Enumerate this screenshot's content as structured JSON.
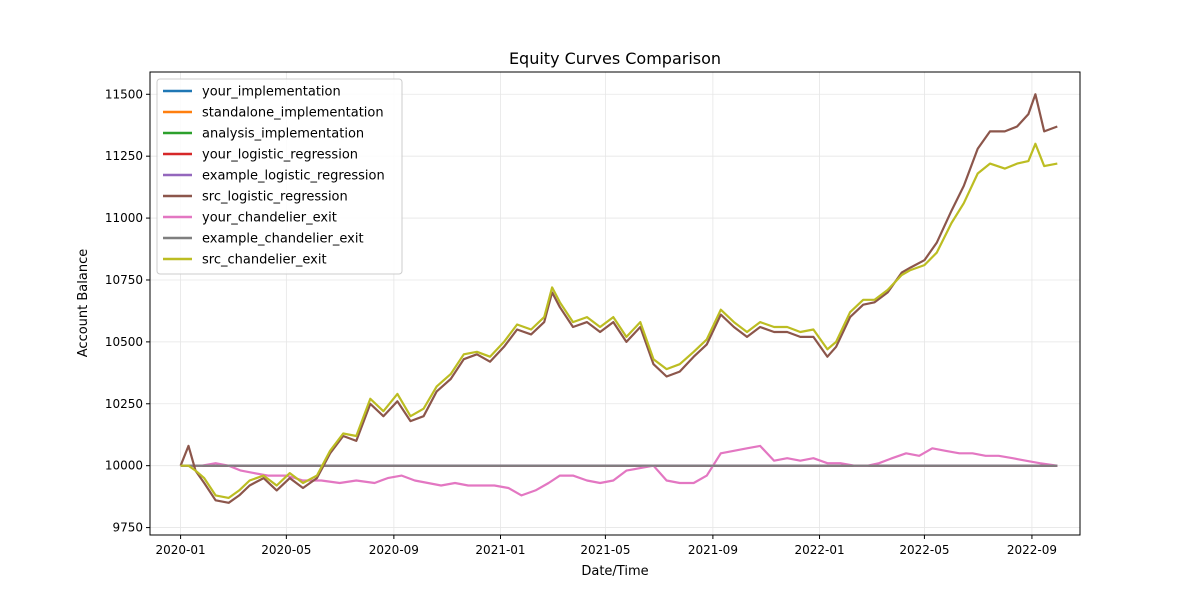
{
  "chart_data": {
    "type": "line",
    "title": "Equity Curves Comparison",
    "xlabel": "Date/Time",
    "ylabel": "Account Balance",
    "xlim": [
      "2019-11-27",
      "2022-10-26"
    ],
    "ylim": [
      9720,
      11590
    ],
    "grid": true,
    "legend_position": "top-left",
    "x_ticks": [
      "2020-01",
      "2020-05",
      "2020-09",
      "2021-01",
      "2021-05",
      "2021-09",
      "2022-01",
      "2022-05",
      "2022-09"
    ],
    "x_tick_dates": [
      "2020-01-01",
      "2020-05-01",
      "2020-09-01",
      "2021-01-01",
      "2021-05-01",
      "2021-09-01",
      "2022-01-01",
      "2022-05-01",
      "2022-09-01"
    ],
    "y_ticks": [
      "9750",
      "10000",
      "10250",
      "10500",
      "10750",
      "11000",
      "11250",
      "11500"
    ],
    "y_tick_values": [
      9750,
      10000,
      10250,
      10500,
      10750,
      11000,
      11250,
      11500
    ],
    "series": [
      {
        "name": "your_implementation",
        "color": "#1f77b4",
        "dates": [
          "2020-01-01",
          "2022-09-30"
        ],
        "values": [
          10000,
          10000
        ]
      },
      {
        "name": "standalone_implementation",
        "color": "#ff7f0e",
        "dates": [
          "2020-01-01",
          "2022-09-30"
        ],
        "values": [
          10000,
          10000
        ]
      },
      {
        "name": "analysis_implementation",
        "color": "#2ca02c",
        "dates": [
          "2020-01-01",
          "2022-09-30"
        ],
        "values": [
          10000,
          10000
        ]
      },
      {
        "name": "your_logistic_regression",
        "color": "#d62728",
        "dates": [
          "2020-01-01",
          "2022-09-30"
        ],
        "values": [
          10000,
          10000
        ]
      },
      {
        "name": "example_logistic_regression",
        "color": "#9467bd",
        "dates": [
          "2020-01-01",
          "2022-09-30"
        ],
        "values": [
          10000,
          10000
        ]
      },
      {
        "name": "src_logistic_regression",
        "color": "#8c564b",
        "dates": [
          "2020-01-01",
          "2020-01-10",
          "2020-01-18",
          "2020-01-28",
          "2020-02-10",
          "2020-02-25",
          "2020-03-08",
          "2020-03-20",
          "2020-04-05",
          "2020-04-20",
          "2020-05-05",
          "2020-05-20",
          "2020-06-05",
          "2020-06-20",
          "2020-07-05",
          "2020-07-20",
          "2020-08-05",
          "2020-08-20",
          "2020-09-05",
          "2020-09-20",
          "2020-10-05",
          "2020-10-20",
          "2020-11-05",
          "2020-11-20",
          "2020-12-05",
          "2020-12-20",
          "2021-01-05",
          "2021-01-20",
          "2021-02-05",
          "2021-02-20",
          "2021-03-01",
          "2021-03-10",
          "2021-03-25",
          "2021-04-10",
          "2021-04-25",
          "2021-05-10",
          "2021-05-25",
          "2021-06-10",
          "2021-06-25",
          "2021-07-10",
          "2021-07-25",
          "2021-08-10",
          "2021-08-25",
          "2021-09-10",
          "2021-09-25",
          "2021-10-10",
          "2021-10-25",
          "2021-11-10",
          "2021-11-25",
          "2021-12-10",
          "2021-12-25",
          "2022-01-10",
          "2022-01-20",
          "2022-02-05",
          "2022-02-20",
          "2022-03-05",
          "2022-03-20",
          "2022-04-05",
          "2022-04-15",
          "2022-05-01",
          "2022-05-15",
          "2022-06-01",
          "2022-06-15",
          "2022-07-01",
          "2022-07-15",
          "2022-08-01",
          "2022-08-15",
          "2022-08-28",
          "2022-09-05",
          "2022-09-15",
          "2022-09-30"
        ],
        "values": [
          10000,
          10080,
          9980,
          9930,
          9860,
          9850,
          9880,
          9920,
          9950,
          9900,
          9950,
          9910,
          9950,
          10050,
          10120,
          10100,
          10250,
          10200,
          10260,
          10180,
          10200,
          10300,
          10350,
          10430,
          10450,
          10420,
          10480,
          10550,
          10530,
          10580,
          10700,
          10640,
          10560,
          10580,
          10540,
          10580,
          10500,
          10560,
          10410,
          10360,
          10380,
          10440,
          10490,
          10610,
          10560,
          10520,
          10560,
          10540,
          10540,
          10520,
          10520,
          10440,
          10480,
          10600,
          10650,
          10660,
          10700,
          10780,
          10800,
          10830,
          10900,
          11030,
          11130,
          11280,
          11350,
          11350,
          11370,
          11420,
          11500,
          11350,
          11370
        ]
      },
      {
        "name": "your_chandelier_exit",
        "color": "#e377c2",
        "dates": [
          "2020-01-01",
          "2020-01-25",
          "2020-02-10",
          "2020-02-25",
          "2020-03-10",
          "2020-03-25",
          "2020-04-10",
          "2020-05-01",
          "2020-05-20",
          "2020-06-10",
          "2020-07-01",
          "2020-07-20",
          "2020-08-10",
          "2020-08-25",
          "2020-09-10",
          "2020-09-25",
          "2020-10-10",
          "2020-10-25",
          "2020-11-10",
          "2020-11-25",
          "2020-12-10",
          "2020-12-25",
          "2021-01-10",
          "2021-01-25",
          "2021-02-10",
          "2021-02-25",
          "2021-03-10",
          "2021-03-25",
          "2021-04-10",
          "2021-04-25",
          "2021-05-10",
          "2021-05-25",
          "2021-06-10",
          "2021-06-25",
          "2021-07-10",
          "2021-07-25",
          "2021-08-10",
          "2021-08-25",
          "2021-09-10",
          "2021-09-25",
          "2021-10-10",
          "2021-10-25",
          "2021-11-10",
          "2021-11-25",
          "2021-12-10",
          "2021-12-25",
          "2022-01-10",
          "2022-01-25",
          "2022-02-10",
          "2022-02-25",
          "2022-03-10",
          "2022-03-25",
          "2022-04-10",
          "2022-04-25",
          "2022-05-10",
          "2022-05-25",
          "2022-06-10",
          "2022-06-25",
          "2022-07-10",
          "2022-07-25",
          "2022-08-10",
          "2022-08-25",
          "2022-09-10",
          "2022-09-30"
        ],
        "values": [
          10000,
          10000,
          10010,
          10000,
          9980,
          9970,
          9960,
          9960,
          9940,
          9940,
          9930,
          9940,
          9930,
          9950,
          9960,
          9940,
          9930,
          9920,
          9930,
          9920,
          9920,
          9920,
          9910,
          9880,
          9900,
          9930,
          9960,
          9960,
          9940,
          9930,
          9940,
          9980,
          9990,
          10000,
          9940,
          9930,
          9930,
          9960,
          10050,
          10060,
          10070,
          10080,
          10020,
          10030,
          10020,
          10030,
          10010,
          10010,
          10000,
          10000,
          10010,
          10030,
          10050,
          10040,
          10070,
          10060,
          10050,
          10050,
          10040,
          10040,
          10030,
          10020,
          10010,
          10000
        ]
      },
      {
        "name": "example_chandelier_exit",
        "color": "#7f7f7f",
        "dates": [
          "2020-01-01",
          "2022-09-30"
        ],
        "values": [
          10000,
          10000
        ]
      },
      {
        "name": "src_chandelier_exit",
        "color": "#bcbd22",
        "dates": [
          "2020-01-01",
          "2020-01-10",
          "2020-01-18",
          "2020-01-28",
          "2020-02-10",
          "2020-02-25",
          "2020-03-08",
          "2020-03-20",
          "2020-04-05",
          "2020-04-20",
          "2020-05-05",
          "2020-05-20",
          "2020-06-05",
          "2020-06-20",
          "2020-07-05",
          "2020-07-20",
          "2020-08-05",
          "2020-08-20",
          "2020-09-05",
          "2020-09-20",
          "2020-10-05",
          "2020-10-20",
          "2020-11-05",
          "2020-11-20",
          "2020-12-05",
          "2020-12-20",
          "2021-01-05",
          "2021-01-20",
          "2021-02-05",
          "2021-02-20",
          "2021-03-01",
          "2021-03-10",
          "2021-03-25",
          "2021-04-10",
          "2021-04-25",
          "2021-05-10",
          "2021-05-25",
          "2021-06-10",
          "2021-06-25",
          "2021-07-10",
          "2021-07-25",
          "2021-08-10",
          "2021-08-25",
          "2021-09-10",
          "2021-09-25",
          "2021-10-10",
          "2021-10-25",
          "2021-11-10",
          "2021-11-25",
          "2021-12-10",
          "2021-12-25",
          "2022-01-10",
          "2022-01-20",
          "2022-02-05",
          "2022-02-20",
          "2022-03-05",
          "2022-03-20",
          "2022-04-05",
          "2022-04-15",
          "2022-05-01",
          "2022-05-15",
          "2022-06-01",
          "2022-06-15",
          "2022-07-01",
          "2022-07-15",
          "2022-08-01",
          "2022-08-15",
          "2022-08-28",
          "2022-09-05",
          "2022-09-15",
          "2022-09-30"
        ],
        "values": [
          10000,
          10000,
          9980,
          9950,
          9880,
          9870,
          9900,
          9940,
          9960,
          9920,
          9970,
          9930,
          9960,
          10060,
          10130,
          10120,
          10270,
          10220,
          10290,
          10200,
          10230,
          10320,
          10370,
          10450,
          10460,
          10440,
          10500,
          10570,
          10550,
          10600,
          10720,
          10660,
          10580,
          10600,
          10560,
          10600,
          10520,
          10580,
          10430,
          10390,
          10410,
          10460,
          10510,
          10630,
          10580,
          10540,
          10580,
          10560,
          10560,
          10540,
          10550,
          10470,
          10500,
          10620,
          10670,
          10670,
          10710,
          10770,
          10790,
          10810,
          10860,
          10980,
          11060,
          11180,
          11220,
          11200,
          11220,
          11230,
          11300,
          11210,
          11220
        ]
      }
    ]
  }
}
